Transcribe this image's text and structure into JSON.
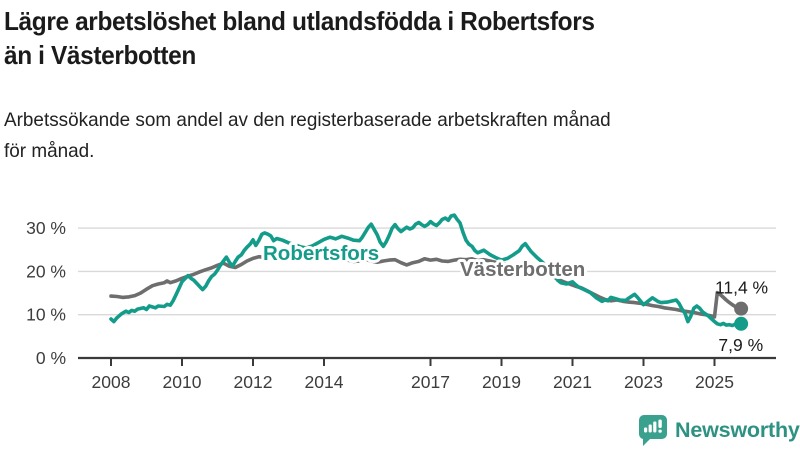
{
  "header": {
    "title_lines": [
      "Lägre arbetslöshet bland utlandsfödda i Robertsfors",
      "än i Västerbotten"
    ],
    "subtitle_lines": [
      "Arbetssökande som andel av den registerbaserade arbetskraften månad",
      "för månad."
    ]
  },
  "footer": {
    "brand": "Newsworthy",
    "logo_icon": "bar-chart-speech-bubble"
  },
  "colors": {
    "robertsfors": "#149c8b",
    "vasterbotten": "#6e6e6e",
    "grid": "#d9d9d9",
    "axis": "#3a3a3a",
    "tick_text": "#3d3d3d",
    "end_label_text": "#1a1a1a",
    "logo_teal": "#3aa18f",
    "logo_wordmark": "#2e9283"
  },
  "chart_data": {
    "type": "line",
    "title": "Lägre arbetslöshet bland utlandsfödda i Robertsfors än i Västerbotten",
    "subtitle": "Arbetssökande som andel av den registerbaserade arbetskraften månad för månad.",
    "xlabel": "",
    "ylabel": "",
    "unit": "%",
    "grid": "horizontal",
    "legend_position": "inline-labels",
    "xlim": [
      2007.5,
      2026.4
    ],
    "ylim": [
      0,
      34
    ],
    "x_ticks": [
      2008,
      2010,
      2012,
      2014,
      2017,
      2019,
      2021,
      2023,
      2025
    ],
    "y_ticks": [
      {
        "value": 0,
        "label": "0 %"
      },
      {
        "value": 10,
        "label": "10 %"
      },
      {
        "value": 20,
        "label": "20 %"
      },
      {
        "value": 30,
        "label": "30 %"
      }
    ],
    "series": [
      {
        "name": "Västerbotten",
        "color": "#6e6e6e",
        "end_label": "11,4 %",
        "end_value": 11.4,
        "points": [
          [
            2008.0,
            14.3
          ],
          [
            2008.17,
            14.2
          ],
          [
            2008.33,
            14.0
          ],
          [
            2008.5,
            14.1
          ],
          [
            2008.67,
            14.4
          ],
          [
            2008.83,
            15.0
          ],
          [
            2009.0,
            15.9
          ],
          [
            2009.17,
            16.7
          ],
          [
            2009.33,
            17.1
          ],
          [
            2009.5,
            17.4
          ],
          [
            2009.58,
            17.8
          ],
          [
            2009.67,
            17.4
          ],
          [
            2009.83,
            17.8
          ],
          [
            2010.0,
            18.4
          ],
          [
            2010.17,
            18.9
          ],
          [
            2010.33,
            19.3
          ],
          [
            2010.5,
            19.9
          ],
          [
            2010.67,
            20.4
          ],
          [
            2010.83,
            20.8
          ],
          [
            2011.0,
            21.4
          ],
          [
            2011.17,
            21.9
          ],
          [
            2011.33,
            21.2
          ],
          [
            2011.5,
            20.9
          ],
          [
            2011.67,
            21.6
          ],
          [
            2011.83,
            22.4
          ],
          [
            2012.0,
            23.0
          ],
          [
            2012.17,
            23.4
          ],
          [
            2012.33,
            23.2
          ],
          [
            2012.5,
            23.5
          ],
          [
            2012.67,
            23.2
          ],
          [
            2012.83,
            23.5
          ],
          [
            2013.0,
            23.7
          ],
          [
            2013.17,
            23.3
          ],
          [
            2013.33,
            23.5
          ],
          [
            2013.5,
            23.1
          ],
          [
            2013.67,
            23.4
          ],
          [
            2013.83,
            23.2
          ],
          [
            2014.0,
            23.4
          ],
          [
            2014.17,
            23.0
          ],
          [
            2014.33,
            22.7
          ],
          [
            2014.5,
            23.0
          ],
          [
            2014.67,
            22.6
          ],
          [
            2014.83,
            22.3
          ],
          [
            2015.0,
            22.4
          ],
          [
            2015.17,
            22.8
          ],
          [
            2015.33,
            22.4
          ],
          [
            2015.5,
            22.1
          ],
          [
            2015.67,
            22.4
          ],
          [
            2015.83,
            22.6
          ],
          [
            2016.0,
            22.7
          ],
          [
            2016.17,
            22.0
          ],
          [
            2016.33,
            21.5
          ],
          [
            2016.5,
            22.0
          ],
          [
            2016.67,
            22.3
          ],
          [
            2016.83,
            22.9
          ],
          [
            2017.0,
            22.6
          ],
          [
            2017.17,
            22.8
          ],
          [
            2017.33,
            22.4
          ],
          [
            2017.5,
            22.3
          ],
          [
            2017.67,
            22.6
          ],
          [
            2017.83,
            22.8
          ],
          [
            2018.0,
            22.7
          ],
          [
            2018.17,
            22.9
          ],
          [
            2018.33,
            22.5
          ],
          [
            2018.5,
            22.7
          ],
          [
            2018.67,
            22.4
          ],
          [
            2018.83,
            22.1
          ],
          [
            2019.0,
            21.8
          ],
          [
            2019.25,
            21.4
          ],
          [
            2019.5,
            21.1
          ],
          [
            2019.75,
            20.8
          ],
          [
            2020.0,
            20.4
          ],
          [
            2020.25,
            19.8
          ],
          [
            2020.42,
            19.0
          ],
          [
            2020.58,
            18.2
          ],
          [
            2020.75,
            17.6
          ],
          [
            2020.92,
            17.1
          ],
          [
            2021.08,
            16.6
          ],
          [
            2021.25,
            16.2
          ],
          [
            2021.42,
            15.5
          ],
          [
            2021.58,
            14.8
          ],
          [
            2021.75,
            14.1
          ],
          [
            2021.92,
            13.5
          ],
          [
            2022.08,
            13.2
          ],
          [
            2022.25,
            13.4
          ],
          [
            2022.42,
            13.1
          ],
          [
            2022.58,
            12.9
          ],
          [
            2022.75,
            12.8
          ],
          [
            2022.92,
            12.6
          ],
          [
            2023.08,
            12.4
          ],
          [
            2023.25,
            12.1
          ],
          [
            2023.42,
            11.9
          ],
          [
            2023.58,
            11.6
          ],
          [
            2023.75,
            11.4
          ],
          [
            2023.92,
            11.2
          ],
          [
            2024.08,
            10.9
          ],
          [
            2024.25,
            10.7
          ],
          [
            2024.42,
            10.5
          ],
          [
            2024.58,
            10.2
          ],
          [
            2024.75,
            10.0
          ],
          [
            2024.92,
            9.7
          ],
          [
            2025.0,
            9.5
          ],
          [
            2025.08,
            15.1
          ],
          [
            2025.17,
            14.6
          ],
          [
            2025.25,
            14.0
          ],
          [
            2025.33,
            13.4
          ],
          [
            2025.42,
            12.8
          ],
          [
            2025.5,
            12.3
          ],
          [
            2025.58,
            11.9
          ],
          [
            2025.67,
            11.6
          ],
          [
            2025.75,
            11.4
          ]
        ]
      },
      {
        "name": "Robertsfors",
        "color": "#149c8b",
        "end_label": "7,9 %",
        "end_value": 7.9,
        "points": [
          [
            2008.0,
            9.0
          ],
          [
            2008.08,
            8.4
          ],
          [
            2008.17,
            9.3
          ],
          [
            2008.3,
            10.2
          ],
          [
            2008.42,
            10.8
          ],
          [
            2008.5,
            10.5
          ],
          [
            2008.58,
            11.0
          ],
          [
            2008.67,
            10.8
          ],
          [
            2008.75,
            11.3
          ],
          [
            2008.92,
            11.6
          ],
          [
            2009.0,
            11.2
          ],
          [
            2009.08,
            12.0
          ],
          [
            2009.25,
            11.6
          ],
          [
            2009.33,
            12.0
          ],
          [
            2009.5,
            11.9
          ],
          [
            2009.58,
            12.4
          ],
          [
            2009.67,
            12.2
          ],
          [
            2009.75,
            13.2
          ],
          [
            2009.83,
            14.6
          ],
          [
            2009.92,
            16.2
          ],
          [
            2010.0,
            17.6
          ],
          [
            2010.08,
            18.3
          ],
          [
            2010.17,
            19.0
          ],
          [
            2010.25,
            18.4
          ],
          [
            2010.33,
            18.0
          ],
          [
            2010.42,
            17.2
          ],
          [
            2010.5,
            16.5
          ],
          [
            2010.58,
            15.8
          ],
          [
            2010.67,
            16.6
          ],
          [
            2010.75,
            17.8
          ],
          [
            2010.83,
            18.8
          ],
          [
            2010.92,
            19.4
          ],
          [
            2011.0,
            20.3
          ],
          [
            2011.08,
            21.4
          ],
          [
            2011.17,
            22.4
          ],
          [
            2011.25,
            23.3
          ],
          [
            2011.33,
            22.2
          ],
          [
            2011.42,
            21.2
          ],
          [
            2011.5,
            22.3
          ],
          [
            2011.58,
            23.3
          ],
          [
            2011.67,
            23.8
          ],
          [
            2011.75,
            24.8
          ],
          [
            2011.83,
            25.6
          ],
          [
            2011.92,
            26.3
          ],
          [
            2012.0,
            27.3
          ],
          [
            2012.08,
            26.0
          ],
          [
            2012.17,
            27.2
          ],
          [
            2012.25,
            28.6
          ],
          [
            2012.33,
            28.9
          ],
          [
            2012.42,
            28.6
          ],
          [
            2012.5,
            28.2
          ],
          [
            2012.58,
            27.1
          ],
          [
            2012.67,
            27.6
          ],
          [
            2012.83,
            27.2
          ],
          [
            2013.0,
            26.6
          ],
          [
            2013.17,
            26.2
          ],
          [
            2013.33,
            25.7
          ],
          [
            2013.5,
            25.4
          ],
          [
            2013.67,
            25.9
          ],
          [
            2013.83,
            26.6
          ],
          [
            2014.0,
            27.4
          ],
          [
            2014.17,
            27.9
          ],
          [
            2014.33,
            27.5
          ],
          [
            2014.5,
            28.1
          ],
          [
            2014.67,
            27.7
          ],
          [
            2014.83,
            27.2
          ],
          [
            2015.0,
            27.1
          ],
          [
            2015.08,
            27.9
          ],
          [
            2015.25,
            30.2
          ],
          [
            2015.33,
            30.9
          ],
          [
            2015.42,
            29.6
          ],
          [
            2015.5,
            28.4
          ],
          [
            2015.58,
            26.8
          ],
          [
            2015.67,
            25.8
          ],
          [
            2015.75,
            26.8
          ],
          [
            2015.83,
            28.2
          ],
          [
            2015.92,
            30.0
          ],
          [
            2016.0,
            30.8
          ],
          [
            2016.08,
            29.9
          ],
          [
            2016.17,
            29.2
          ],
          [
            2016.33,
            30.2
          ],
          [
            2016.42,
            29.8
          ],
          [
            2016.5,
            30.1
          ],
          [
            2016.58,
            30.9
          ],
          [
            2016.67,
            31.3
          ],
          [
            2016.75,
            30.8
          ],
          [
            2016.83,
            30.4
          ],
          [
            2016.92,
            30.8
          ],
          [
            2017.0,
            31.5
          ],
          [
            2017.08,
            31.0
          ],
          [
            2017.17,
            30.6
          ],
          [
            2017.25,
            31.2
          ],
          [
            2017.33,
            32.0
          ],
          [
            2017.42,
            32.3
          ],
          [
            2017.5,
            31.8
          ],
          [
            2017.58,
            32.8
          ],
          [
            2017.67,
            33.0
          ],
          [
            2017.75,
            32.0
          ],
          [
            2017.83,
            31.2
          ],
          [
            2017.92,
            28.9
          ],
          [
            2018.0,
            27.2
          ],
          [
            2018.08,
            26.3
          ],
          [
            2018.17,
            25.8
          ],
          [
            2018.25,
            24.8
          ],
          [
            2018.33,
            24.3
          ],
          [
            2018.5,
            24.9
          ],
          [
            2018.67,
            23.9
          ],
          [
            2018.83,
            23.2
          ],
          [
            2019.0,
            22.6
          ],
          [
            2019.17,
            23.0
          ],
          [
            2019.33,
            23.8
          ],
          [
            2019.5,
            24.8
          ],
          [
            2019.58,
            25.8
          ],
          [
            2019.67,
            26.4
          ],
          [
            2019.75,
            25.5
          ],
          [
            2019.83,
            24.6
          ],
          [
            2020.0,
            23.2
          ],
          [
            2020.17,
            22.0
          ],
          [
            2020.33,
            20.5
          ],
          [
            2020.5,
            19.0
          ],
          [
            2020.58,
            18.0
          ],
          [
            2020.67,
            17.4
          ],
          [
            2020.83,
            17.1
          ],
          [
            2021.0,
            17.6
          ],
          [
            2021.08,
            17.0
          ],
          [
            2021.17,
            16.4
          ],
          [
            2021.33,
            15.8
          ],
          [
            2021.5,
            15.1
          ],
          [
            2021.67,
            13.9
          ],
          [
            2021.83,
            13.1
          ],
          [
            2021.92,
            13.4
          ],
          [
            2022.0,
            13.2
          ],
          [
            2022.08,
            14.0
          ],
          [
            2022.17,
            13.8
          ],
          [
            2022.33,
            13.4
          ],
          [
            2022.5,
            13.3
          ],
          [
            2022.58,
            13.8
          ],
          [
            2022.75,
            14.7
          ],
          [
            2022.83,
            14.0
          ],
          [
            2023.0,
            12.3
          ],
          [
            2023.08,
            12.8
          ],
          [
            2023.25,
            13.9
          ],
          [
            2023.42,
            13.0
          ],
          [
            2023.5,
            12.8
          ],
          [
            2023.67,
            12.9
          ],
          [
            2023.83,
            13.2
          ],
          [
            2023.92,
            13.4
          ],
          [
            2024.0,
            12.6
          ],
          [
            2024.08,
            11.4
          ],
          [
            2024.17,
            10.3
          ],
          [
            2024.25,
            8.4
          ],
          [
            2024.33,
            9.6
          ],
          [
            2024.42,
            11.5
          ],
          [
            2024.5,
            12.0
          ],
          [
            2024.58,
            11.5
          ],
          [
            2024.67,
            10.6
          ],
          [
            2024.83,
            9.7
          ],
          [
            2024.92,
            9.0
          ],
          [
            2025.0,
            8.4
          ],
          [
            2025.08,
            7.9
          ],
          [
            2025.17,
            7.7
          ],
          [
            2025.25,
            8.0
          ],
          [
            2025.33,
            7.6
          ],
          [
            2025.42,
            7.7
          ],
          [
            2025.5,
            7.5
          ],
          [
            2025.58,
            7.8
          ],
          [
            2025.67,
            7.7
          ],
          [
            2025.75,
            7.9
          ]
        ]
      }
    ]
  }
}
